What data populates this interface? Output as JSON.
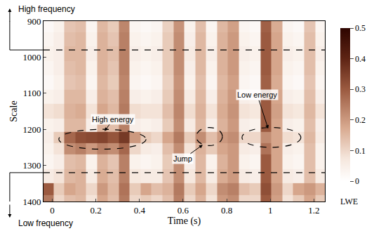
{
  "chart_data": {
    "type": "heatmap",
    "x_label": "Time (s)",
    "y_label": "Scale",
    "colorbar_label": "LWE",
    "top_label": "High frequency",
    "bottom_label": "Low frequency",
    "x": [
      -0.02,
      0.03,
      0.08,
      0.13,
      0.18,
      0.23,
      0.28,
      0.33,
      0.38,
      0.43,
      0.48,
      0.53,
      0.58,
      0.63,
      0.68,
      0.73,
      0.78,
      0.83,
      0.88,
      0.93,
      0.98,
      1.03,
      1.08,
      1.13,
      1.18,
      1.23
    ],
    "y": [
      910,
      950,
      990,
      1030,
      1070,
      1110,
      1150,
      1190,
      1225,
      1250,
      1290,
      1330,
      1370,
      1395
    ],
    "z": [
      [
        0.02,
        0.04,
        0.13,
        0.14,
        0.03,
        0.15,
        0.12,
        0.23,
        0.03,
        0.02,
        0.03,
        0.11,
        0.21,
        0.04,
        0.14,
        0.03,
        0.15,
        0.19,
        0.03,
        0.02,
        0.29,
        0.17,
        0.03,
        0.02,
        0.13,
        0.03
      ],
      [
        0.03,
        0.05,
        0.14,
        0.15,
        0.04,
        0.16,
        0.13,
        0.24,
        0.04,
        0.03,
        0.04,
        0.12,
        0.22,
        0.05,
        0.15,
        0.04,
        0.16,
        0.2,
        0.04,
        0.03,
        0.3,
        0.18,
        0.04,
        0.03,
        0.14,
        0.04
      ],
      [
        0.04,
        0.05,
        0.15,
        0.15,
        0.05,
        0.16,
        0.14,
        0.24,
        0.05,
        0.04,
        0.05,
        0.12,
        0.22,
        0.06,
        0.15,
        0.05,
        0.16,
        0.2,
        0.05,
        0.04,
        0.3,
        0.18,
        0.05,
        0.04,
        0.14,
        0.05
      ],
      [
        0.03,
        0.05,
        0.14,
        0.15,
        0.04,
        0.16,
        0.13,
        0.24,
        0.04,
        0.03,
        0.04,
        0.12,
        0.22,
        0.05,
        0.15,
        0.04,
        0.16,
        0.2,
        0.04,
        0.03,
        0.3,
        0.18,
        0.04,
        0.03,
        0.14,
        0.04
      ],
      [
        0.02,
        0.04,
        0.13,
        0.14,
        0.03,
        0.15,
        0.12,
        0.23,
        0.03,
        0.02,
        0.03,
        0.11,
        0.21,
        0.04,
        0.14,
        0.03,
        0.15,
        0.19,
        0.03,
        0.02,
        0.29,
        0.17,
        0.03,
        0.02,
        0.13,
        0.03
      ],
      [
        0.04,
        0.05,
        0.15,
        0.15,
        0.05,
        0.16,
        0.14,
        0.24,
        0.05,
        0.04,
        0.05,
        0.12,
        0.22,
        0.06,
        0.15,
        0.05,
        0.16,
        0.2,
        0.05,
        0.04,
        0.3,
        0.18,
        0.05,
        0.04,
        0.14,
        0.05
      ],
      [
        0.08,
        0.09,
        0.16,
        0.17,
        0.08,
        0.18,
        0.15,
        0.25,
        0.09,
        0.08,
        0.08,
        0.14,
        0.23,
        0.09,
        0.16,
        0.08,
        0.17,
        0.21,
        0.08,
        0.07,
        0.3,
        0.19,
        0.08,
        0.07,
        0.15,
        0.08
      ],
      [
        0.04,
        0.05,
        0.15,
        0.15,
        0.05,
        0.16,
        0.14,
        0.24,
        0.05,
        0.04,
        0.05,
        0.12,
        0.22,
        0.06,
        0.15,
        0.05,
        0.16,
        0.2,
        0.05,
        0.04,
        0.3,
        0.18,
        0.05,
        0.04,
        0.14,
        0.05
      ],
      [
        0.05,
        0.12,
        0.28,
        0.32,
        0.33,
        0.34,
        0.31,
        0.36,
        0.2,
        0.12,
        0.1,
        0.18,
        0.25,
        0.12,
        0.22,
        0.14,
        0.2,
        0.22,
        0.1,
        0.1,
        0.22,
        0.18,
        0.09,
        0.08,
        0.15,
        0.06
      ],
      [
        0.04,
        0.08,
        0.22,
        0.24,
        0.2,
        0.24,
        0.22,
        0.28,
        0.1,
        0.06,
        0.05,
        0.14,
        0.22,
        0.08,
        0.16,
        0.12,
        0.18,
        0.2,
        0.06,
        0.05,
        0.26,
        0.18,
        0.05,
        0.04,
        0.14,
        0.04
      ],
      [
        0.03,
        0.05,
        0.14,
        0.15,
        0.04,
        0.16,
        0.13,
        0.24,
        0.04,
        0.03,
        0.04,
        0.12,
        0.22,
        0.05,
        0.15,
        0.04,
        0.16,
        0.2,
        0.04,
        0.03,
        0.3,
        0.18,
        0.04,
        0.03,
        0.14,
        0.04
      ],
      [
        0.06,
        0.08,
        0.15,
        0.16,
        0.06,
        0.17,
        0.14,
        0.24,
        0.07,
        0.06,
        0.06,
        0.13,
        0.22,
        0.07,
        0.15,
        0.06,
        0.17,
        0.2,
        0.06,
        0.05,
        0.3,
        0.18,
        0.06,
        0.05,
        0.14,
        0.06
      ],
      [
        0.3,
        0.12,
        0.18,
        0.16,
        0.1,
        0.2,
        0.15,
        0.26,
        0.12,
        0.18,
        0.14,
        0.16,
        0.25,
        0.12,
        0.18,
        0.1,
        0.22,
        0.24,
        0.14,
        0.12,
        0.32,
        0.2,
        0.1,
        0.18,
        0.2,
        0.16
      ],
      [
        0.25,
        0.1,
        0.14,
        0.15,
        0.08,
        0.18,
        0.14,
        0.25,
        0.1,
        0.12,
        0.1,
        0.14,
        0.24,
        0.1,
        0.16,
        0.08,
        0.2,
        0.22,
        0.1,
        0.1,
        0.3,
        0.19,
        0.08,
        0.12,
        0.18,
        0.12
      ]
    ],
    "xlim": [
      -0.04,
      1.25
    ],
    "xticks": [
      0,
      0.2,
      0.4,
      0.6,
      0.8,
      1,
      1.2
    ],
    "ylim": [
      1400,
      900
    ],
    "yticks": [
      900,
      1000,
      1100,
      1200,
      1300,
      1400
    ],
    "colorbar": {
      "range": [
        0,
        0.5
      ],
      "ticks": [
        0,
        0.1,
        0.2,
        0.3,
        0.4,
        0.5
      ]
    },
    "dashed_lines": [
      980,
      1320
    ],
    "annotations": [
      {
        "text": "High energy",
        "x": 0.24,
        "y": 1205,
        "text_x": 0.28,
        "text_y": 1172
      },
      {
        "text": "Jump",
        "x": 0.69,
        "y": 1243,
        "text_x": 0.6,
        "text_y": 1282
      },
      {
        "text": "Low energy",
        "x": 0.99,
        "y": 1198,
        "text_x": 0.94,
        "text_y": 1105
      }
    ],
    "regions": [
      {
        "x0": 0.03,
        "x1": 0.43,
        "y0": 1200,
        "y1": 1255
      },
      {
        "x0": 0.66,
        "x1": 0.78,
        "y0": 1195,
        "y1": 1245
      },
      {
        "x0": 0.87,
        "x1": 1.14,
        "y0": 1195,
        "y1": 1250
      }
    ]
  }
}
